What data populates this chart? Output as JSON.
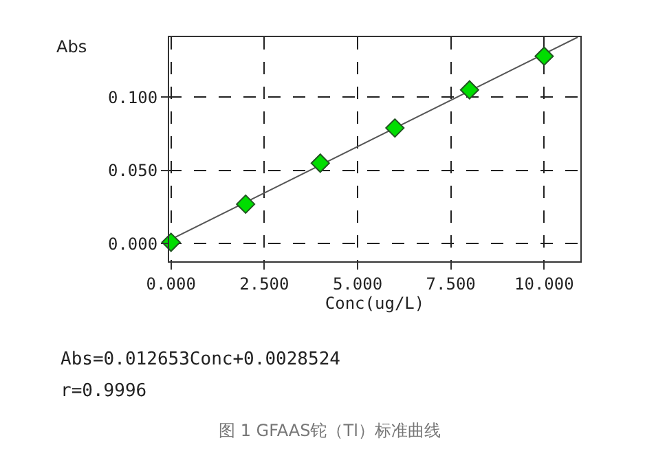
{
  "chart_data": {
    "type": "scatter",
    "xlabel": "Conc(ug/L)",
    "ylabel": "Abs",
    "x": [
      0,
      2,
      4,
      6,
      8,
      10
    ],
    "series": [
      {
        "color": "#00dd00",
        "marker": "diamond",
        "values": [
          0.001,
          0.027,
          0.055,
          0.079,
          0.105,
          0.128
        ]
      },
      {
        "type": "line",
        "color": "#555555",
        "marker": "none",
        "x": [
          0,
          10.9
        ],
        "values": [
          0.003,
          0.141
        ]
      }
    ],
    "xlim": [
      -0.05,
      10.97
    ],
    "ylim": [
      -0.012,
      0.141
    ],
    "xticks": [
      {
        "value": 0,
        "label": "0.000"
      },
      {
        "value": 2.5,
        "label": "2.500"
      },
      {
        "value": 5,
        "label": "5.000"
      },
      {
        "value": 7.5,
        "label": "7.500"
      },
      {
        "value": 10,
        "label": "10.000"
      }
    ],
    "yticks": [
      {
        "value": 0,
        "label": "0.000"
      },
      {
        "value": 0.05,
        "label": "0.050"
      },
      {
        "value": 0.1,
        "label": "0.100"
      }
    ],
    "grid": true,
    "line_style": "solid",
    "legend": false,
    "annotations": [
      "Abs=0.012653Conc+0.0028524",
      "r=0.9996",
      "图 1 GFAAS铊（Tl）标准曲线"
    ]
  }
}
